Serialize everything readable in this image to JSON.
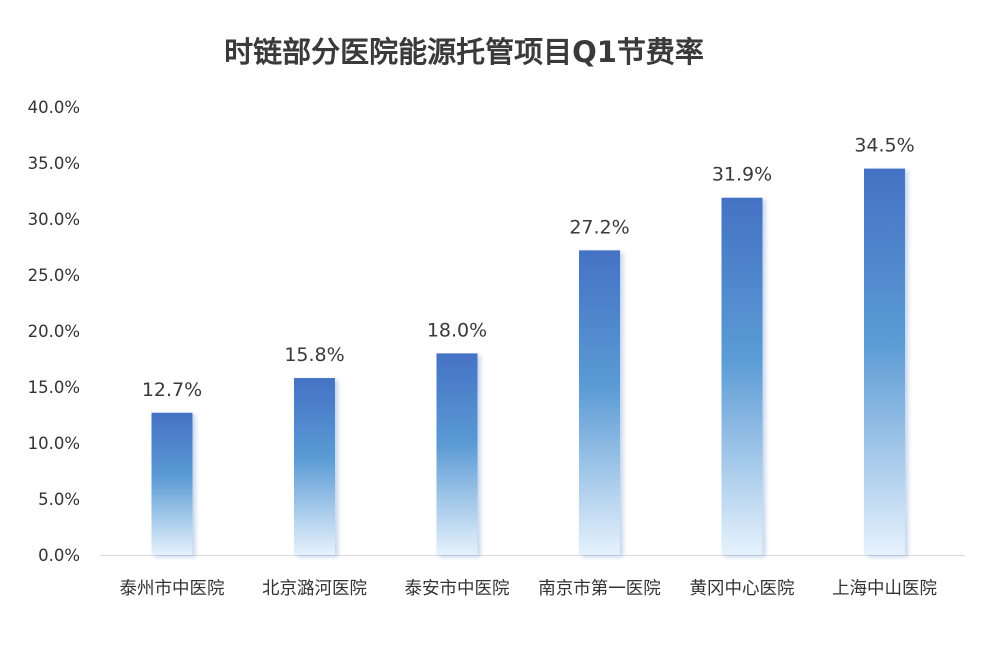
{
  "chart_data": {
    "type": "bar",
    "title": "时链部分医院能源托管项目Q1节费率",
    "xlabel": "",
    "ylabel": "",
    "categories": [
      "泰州市中医院",
      "北京潞河医院",
      "泰安市中医院",
      "南京市第一医院",
      "黄冈中心医院",
      "上海中山医院"
    ],
    "values": [
      12.7,
      15.8,
      18.0,
      27.2,
      31.9,
      34.5
    ],
    "data_labels": [
      "12.7%",
      "15.8%",
      "18.0%",
      "27.2%",
      "31.9%",
      "34.5%"
    ],
    "ylim": [
      0,
      40
    ],
    "yticks": [
      0,
      5,
      10,
      15,
      20,
      25,
      30,
      35,
      40
    ],
    "ytick_labels": [
      "0.0%",
      "5.0%",
      "10.0%",
      "15.0%",
      "20.0%",
      "25.0%",
      "30.0%",
      "35.0%",
      "40.0%"
    ],
    "grid": false,
    "legend": "none",
    "colors": {
      "bar_top": "#4472c4",
      "bar_mid": "#5b9bd5",
      "bar_bottom": "#e6f2fc",
      "axis": "#d9d9d9"
    }
  }
}
